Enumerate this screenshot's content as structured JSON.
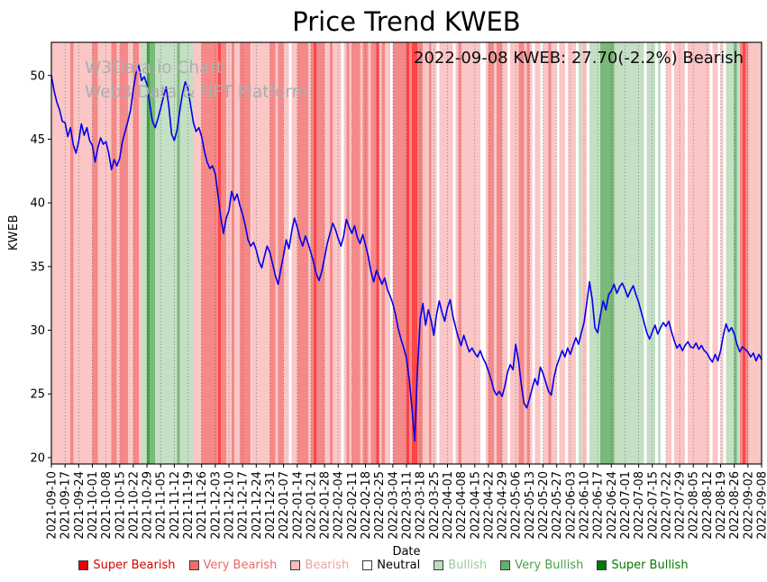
{
  "chart": {
    "title": "Price Trend KWEB",
    "xlabel": "Date",
    "ylabel": "KWEB"
  },
  "watermark": {
    "line1": "W3Data.io Chart",
    "line2": "Web3 Data & NFT Platform"
  },
  "annotation": {
    "text": "2022-09-08 KWEB: 27.70(-2.2%) Bearish"
  },
  "chart_data": {
    "type": "line",
    "title": "Price Trend KWEB",
    "xlabel": "Date",
    "ylabel": "KWEB",
    "ylim": [
      19.5,
      52.6
    ],
    "grid": "vertical-dotted",
    "line_color": "#0000ee",
    "y_ticks": [
      20,
      25,
      30,
      35,
      40,
      45,
      50
    ],
    "x_tick_labels": [
      "2021-09-10",
      "2021-09-17",
      "2021-09-24",
      "2021-10-01",
      "2021-10-08",
      "2021-10-15",
      "2021-10-22",
      "2021-10-29",
      "2021-11-05",
      "2021-11-12",
      "2021-11-19",
      "2021-11-26",
      "2021-12-03",
      "2021-12-10",
      "2021-12-17",
      "2021-12-24",
      "2021-12-31",
      "2022-01-07",
      "2022-01-14",
      "2022-01-21",
      "2022-01-28",
      "2022-02-04",
      "2022-02-11",
      "2022-02-18",
      "2022-02-25",
      "2022-03-04",
      "2022-03-11",
      "2022-03-18",
      "2022-03-25",
      "2022-04-01",
      "2022-04-08",
      "2022-04-15",
      "2022-04-22",
      "2022-04-29",
      "2022-05-06",
      "2022-05-13",
      "2022-05-20",
      "2022-05-27",
      "2022-06-03",
      "2022-06-10",
      "2022-06-17",
      "2022-06-24",
      "2022-07-01",
      "2022-07-08",
      "2022-07-15",
      "2022-07-22",
      "2022-07-29",
      "2022-08-05",
      "2022-08-12",
      "2022-08-19",
      "2022-08-26",
      "2022-09-02",
      "2022-09-08"
    ],
    "values": [
      50.0,
      48.8,
      47.9,
      47.3,
      46.4,
      46.3,
      45.2,
      45.9,
      44.6,
      43.9,
      44.8,
      46.2,
      45.3,
      45.9,
      44.9,
      44.5,
      43.2,
      44.3,
      45.1,
      44.6,
      44.8,
      43.9,
      42.6,
      43.4,
      42.9,
      43.5,
      44.8,
      45.6,
      46.4,
      47.3,
      48.9,
      50.2,
      50.8,
      49.6,
      49.9,
      49.3,
      47.8,
      46.4,
      45.9,
      46.6,
      47.4,
      48.3,
      49.1,
      47.6,
      45.4,
      44.9,
      45.7,
      47.2,
      48.6,
      49.5,
      49.0,
      47.6,
      46.3,
      45.6,
      45.9,
      45.2,
      44.1,
      43.2,
      42.7,
      42.9,
      42.3,
      40.6,
      38.9,
      37.6,
      38.8,
      39.4,
      40.9,
      40.2,
      40.7,
      39.8,
      39.1,
      38.2,
      37.1,
      36.6,
      36.9,
      36.3,
      35.4,
      34.9,
      35.8,
      36.6,
      36.1,
      35.2,
      34.3,
      33.6,
      34.8,
      35.9,
      37.1,
      36.4,
      37.8,
      38.8,
      38.1,
      37.2,
      36.6,
      37.4,
      36.8,
      36.1,
      35.3,
      34.4,
      33.9,
      34.6,
      35.7,
      36.8,
      37.6,
      38.4,
      37.9,
      37.2,
      36.6,
      37.4,
      38.7,
      38.1,
      37.6,
      38.2,
      37.3,
      36.8,
      37.5,
      36.7,
      35.8,
      34.6,
      33.8,
      34.7,
      34.2,
      33.6,
      34.1,
      33.2,
      32.7,
      32.1,
      31.2,
      30.1,
      29.3,
      28.6,
      27.8,
      26.2,
      23.9,
      21.3,
      26.8,
      30.9,
      32.1,
      30.4,
      31.6,
      30.8,
      29.6,
      31.2,
      32.3,
      31.4,
      30.7,
      31.8,
      32.4,
      31.1,
      30.2,
      29.4,
      28.8,
      29.6,
      28.9,
      28.3,
      28.6,
      28.2,
      27.9,
      28.4,
      27.8,
      27.4,
      26.8,
      26.1,
      25.3,
      24.9,
      25.2,
      24.8,
      25.6,
      26.7,
      27.3,
      26.9,
      28.9,
      27.6,
      25.8,
      24.3,
      23.9,
      24.6,
      25.4,
      26.2,
      25.7,
      27.1,
      26.6,
      25.9,
      25.2,
      24.9,
      26.3,
      27.2,
      27.8,
      28.4,
      27.9,
      28.6,
      28.1,
      28.8,
      29.4,
      28.9,
      29.8,
      30.6,
      32.1,
      33.8,
      32.4,
      30.2,
      29.8,
      31.2,
      32.3,
      31.6,
      32.8,
      33.1,
      33.6,
      32.9,
      33.4,
      33.7,
      33.2,
      32.6,
      33.1,
      33.5,
      32.8,
      32.2,
      31.4,
      30.6,
      29.8,
      29.3,
      29.9,
      30.4,
      29.7,
      30.2,
      30.6,
      30.3,
      30.7,
      29.9,
      29.2,
      28.6,
      28.9,
      28.4,
      28.8,
      29.1,
      28.7,
      28.6,
      29.0,
      28.5,
      28.8,
      28.4,
      28.2,
      27.8,
      27.5,
      28.1,
      27.6,
      28.4,
      29.6,
      30.5,
      29.9,
      30.2,
      29.7,
      28.9,
      28.3,
      28.7,
      28.5,
      28.3,
      27.9,
      28.2,
      27.6,
      28.1,
      27.7
    ],
    "last_point": {
      "date": "2022-09-08",
      "value": 27.7,
      "change_pct": -2.2,
      "sentiment": "Bearish"
    },
    "sentiment_colors": {
      "super_bearish": "#ff4545",
      "very_bearish": "#f58888",
      "bearish": "#fac6c6",
      "neutral": "#ffffff",
      "bullish": "#c4dfc4",
      "very_bullish": "#7ab97a",
      "super_bullish": "#43a143"
    },
    "bands_format": "[start_day_index, day_count, sentiment_level]",
    "bands": [
      [
        0,
        7,
        "bearish"
      ],
      [
        7,
        1,
        "very_bearish"
      ],
      [
        8,
        7,
        "bearish"
      ],
      [
        15,
        2,
        "very_bearish"
      ],
      [
        17,
        5,
        "bearish"
      ],
      [
        22,
        2,
        "very_bearish"
      ],
      [
        24,
        1,
        "bearish"
      ],
      [
        25,
        3,
        "very_bearish"
      ],
      [
        28,
        2,
        "bearish"
      ],
      [
        30,
        2,
        "very_bearish"
      ],
      [
        32,
        1,
        "bearish"
      ],
      [
        33,
        2,
        "bullish"
      ],
      [
        35,
        1,
        "super_bullish"
      ],
      [
        36,
        2,
        "very_bullish"
      ],
      [
        38,
        8,
        "bullish"
      ],
      [
        46,
        1,
        "very_bullish"
      ],
      [
        47,
        5,
        "bullish"
      ],
      [
        52,
        3,
        "bearish"
      ],
      [
        55,
        6,
        "very_bearish"
      ],
      [
        61,
        1,
        "super_bearish"
      ],
      [
        62,
        2,
        "very_bearish"
      ],
      [
        64,
        2,
        "bearish"
      ],
      [
        66,
        1,
        "very_bearish"
      ],
      [
        67,
        2,
        "bearish"
      ],
      [
        69,
        4,
        "very_bearish"
      ],
      [
        73,
        7,
        "bearish"
      ],
      [
        80,
        2,
        "very_bearish"
      ],
      [
        82,
        1,
        "bearish"
      ],
      [
        83,
        2,
        "very_bearish"
      ],
      [
        85,
        2,
        "bearish"
      ],
      [
        87,
        1,
        "neutral"
      ],
      [
        88,
        2,
        "bearish"
      ],
      [
        90,
        4,
        "very_bearish"
      ],
      [
        94,
        1,
        "bearish"
      ],
      [
        95,
        1,
        "very_bearish"
      ],
      [
        96,
        1,
        "super_bearish"
      ],
      [
        97,
        3,
        "very_bearish"
      ],
      [
        100,
        2,
        "bearish"
      ],
      [
        102,
        1,
        "very_bearish"
      ],
      [
        103,
        3,
        "bearish"
      ],
      [
        106,
        1,
        "neutral"
      ],
      [
        107,
        1,
        "bearish"
      ],
      [
        108,
        1,
        "very_bearish"
      ],
      [
        109,
        1,
        "bearish"
      ],
      [
        110,
        3,
        "very_bearish"
      ],
      [
        113,
        1,
        "bearish"
      ],
      [
        114,
        2,
        "very_bearish"
      ],
      [
        116,
        1,
        "bearish"
      ],
      [
        117,
        2,
        "very_bearish"
      ],
      [
        119,
        1,
        "super_bearish"
      ],
      [
        120,
        1,
        "bearish"
      ],
      [
        121,
        1,
        "very_bearish"
      ],
      [
        122,
        2,
        "bearish"
      ],
      [
        124,
        1,
        "neutral"
      ],
      [
        125,
        5,
        "very_bearish"
      ],
      [
        130,
        1,
        "super_bearish"
      ],
      [
        131,
        1,
        "very_bearish"
      ],
      [
        132,
        2,
        "super_bearish"
      ],
      [
        134,
        2,
        "very_bearish"
      ],
      [
        136,
        2,
        "bearish"
      ],
      [
        138,
        1,
        "very_bearish"
      ],
      [
        139,
        2,
        "bearish"
      ],
      [
        141,
        1,
        "neutral"
      ],
      [
        142,
        5,
        "bearish"
      ],
      [
        147,
        1,
        "neutral"
      ],
      [
        148,
        1,
        "bearish"
      ],
      [
        149,
        1,
        "very_bearish"
      ],
      [
        150,
        7,
        "bearish"
      ],
      [
        157,
        2,
        "neutral"
      ],
      [
        159,
        1,
        "bearish"
      ],
      [
        160,
        2,
        "very_bearish"
      ],
      [
        162,
        1,
        "bearish"
      ],
      [
        163,
        2,
        "very_bearish"
      ],
      [
        165,
        2,
        "bearish"
      ],
      [
        167,
        1,
        "neutral"
      ],
      [
        168,
        3,
        "bearish"
      ],
      [
        171,
        2,
        "very_bearish"
      ],
      [
        173,
        1,
        "bearish"
      ],
      [
        174,
        1,
        "very_bearish"
      ],
      [
        175,
        1,
        "bearish"
      ],
      [
        176,
        1,
        "neutral"
      ],
      [
        177,
        2,
        "bearish"
      ],
      [
        179,
        1,
        "neutral"
      ],
      [
        180,
        2,
        "bearish"
      ],
      [
        182,
        1,
        "very_bearish"
      ],
      [
        183,
        2,
        "bearish"
      ],
      [
        185,
        1,
        "neutral"
      ],
      [
        186,
        2,
        "bearish"
      ],
      [
        188,
        1,
        "neutral"
      ],
      [
        189,
        3,
        "bearish"
      ],
      [
        192,
        1,
        "neutral"
      ],
      [
        193,
        1,
        "bullish"
      ],
      [
        194,
        2,
        "bearish"
      ],
      [
        196,
        1,
        "neutral"
      ],
      [
        197,
        4,
        "bullish"
      ],
      [
        201,
        5,
        "very_bullish"
      ],
      [
        206,
        11,
        "bullish"
      ],
      [
        217,
        1,
        "neutral"
      ],
      [
        218,
        3,
        "bullish"
      ],
      [
        221,
        1,
        "neutral"
      ],
      [
        222,
        1,
        "bullish"
      ],
      [
        223,
        2,
        "neutral"
      ],
      [
        225,
        2,
        "bearish"
      ],
      [
        227,
        1,
        "neutral"
      ],
      [
        228,
        4,
        "bearish"
      ],
      [
        232,
        1,
        "neutral"
      ],
      [
        233,
        8,
        "bearish"
      ],
      [
        241,
        1,
        "neutral"
      ],
      [
        242,
        2,
        "bearish"
      ],
      [
        244,
        1,
        "neutral"
      ],
      [
        245,
        1,
        "bearish"
      ],
      [
        246,
        1,
        "neutral"
      ],
      [
        247,
        3,
        "bullish"
      ],
      [
        250,
        1,
        "very_bullish"
      ],
      [
        251,
        1,
        "bullish"
      ],
      [
        252,
        1,
        "very_bearish"
      ],
      [
        253,
        1,
        "super_bearish"
      ],
      [
        254,
        1,
        "very_bearish"
      ],
      [
        255,
        6,
        "bearish"
      ]
    ]
  },
  "legend": {
    "items": [
      {
        "label": "Super Bearish",
        "swatch": "#e60000",
        "text_color": "#d40000"
      },
      {
        "label": "Very Bearish",
        "swatch": "#f26c6c",
        "text_color": "#e86a6a"
      },
      {
        "label": "Bearish",
        "swatch": "#f7bcbc",
        "text_color": "#eaa4a4"
      },
      {
        "label": "Neutral",
        "swatch": "#ffffff",
        "text_color": "#000000"
      },
      {
        "label": "Bullish",
        "swatch": "#bddcbd",
        "text_color": "#9cc99c"
      },
      {
        "label": "Very Bullish",
        "swatch": "#64b164",
        "text_color": "#4d9e4d"
      },
      {
        "label": "Super Bullish",
        "swatch": "#067806",
        "text_color": "#067806"
      }
    ]
  }
}
